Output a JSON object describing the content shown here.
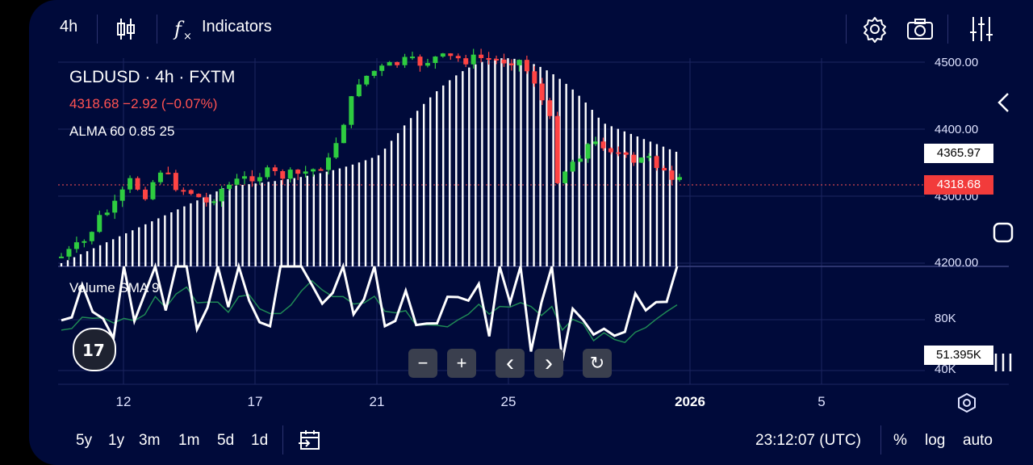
{
  "toolbar": {
    "interval": "4h",
    "indicators_label": "Indicators"
  },
  "legend": {
    "title": "GLDUSD · 4h · FXTM",
    "price_line": "4318.68  −2.92 (−0.07%)",
    "alma": "ALMA 60 0.85 25",
    "volume": "Volume SMA 9"
  },
  "price_axis": {
    "labels": [
      "4500.00",
      "4400.00",
      "4300.00",
      "4200.00"
    ],
    "alma_tag": "4365.97",
    "last_tag": "4318.68"
  },
  "volume_axis": {
    "labels": [
      "80K",
      "40K"
    ],
    "sma_tag": "51.395K"
  },
  "time_axis": [
    "12",
    "17",
    "21",
    "25",
    "2026",
    "5"
  ],
  "controls": {
    "zoom_out": "−",
    "zoom_in": "+",
    "scroll_left": "‹",
    "scroll_right": "›",
    "reset": "↻"
  },
  "ranges": [
    "5y",
    "1y",
    "3m",
    "1m",
    "5d",
    "1d"
  ],
  "clock": "23:12:07 (UTC)",
  "bottom_right": {
    "percent": "%",
    "log": "log",
    "auto": "auto"
  },
  "colors": {
    "background": "#000a3a",
    "up": "#26a69a",
    "up_bright": "#2ecc40",
    "down": "#ff4444",
    "alma_bars": "#ffffff",
    "volume_line": "#ffffff",
    "sma_line": "#1f8a55"
  },
  "icons": [
    "candles-icon",
    "function-icon",
    "gear-icon",
    "camera-icon",
    "sliders-icon",
    "tradingview-logo-icon",
    "calendar-goto-icon",
    "settings-hex-icon",
    "back-chevron-icon",
    "home-icon",
    "recents-icon"
  ]
}
